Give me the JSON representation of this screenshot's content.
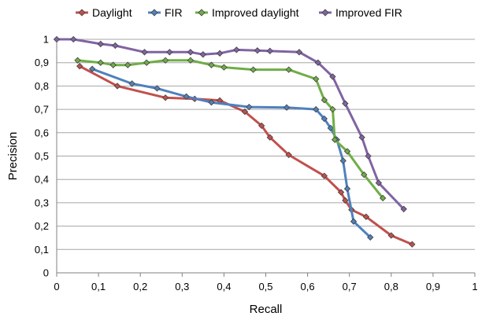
{
  "chart_data": {
    "type": "line",
    "title": "",
    "xlabel": "Recall",
    "ylabel": "Precision",
    "xlim": [
      0,
      1
    ],
    "ylim": [
      0,
      1
    ],
    "x_ticks": [
      "0",
      "0,1",
      "0,2",
      "0,3",
      "0,4",
      "0,5",
      "0,6",
      "0,7",
      "0,8",
      "0,9",
      "1"
    ],
    "y_ticks": [
      "0",
      "0,1",
      "0,2",
      "0,3",
      "0,4",
      "0,5",
      "0,6",
      "0,7",
      "0,8",
      "0,9",
      "1"
    ],
    "grid": "horizontal",
    "legend_position": "top",
    "marker": "diamond",
    "series": [
      {
        "name": "Daylight",
        "color": "#c0504d",
        "points": [
          [
            0.055,
            0.885
          ],
          [
            0.145,
            0.8
          ],
          [
            0.26,
            0.75
          ],
          [
            0.33,
            0.745
          ],
          [
            0.39,
            0.738
          ],
          [
            0.45,
            0.69
          ],
          [
            0.49,
            0.63
          ],
          [
            0.51,
            0.58
          ],
          [
            0.555,
            0.505
          ],
          [
            0.64,
            0.415
          ],
          [
            0.68,
            0.345
          ],
          [
            0.69,
            0.31
          ],
          [
            0.705,
            0.27
          ],
          [
            0.74,
            0.24
          ],
          [
            0.8,
            0.16
          ],
          [
            0.85,
            0.122
          ]
        ]
      },
      {
        "name": "FIR",
        "color": "#4f81bd",
        "points": [
          [
            0.085,
            0.873
          ],
          [
            0.18,
            0.81
          ],
          [
            0.24,
            0.79
          ],
          [
            0.31,
            0.755
          ],
          [
            0.37,
            0.73
          ],
          [
            0.46,
            0.71
          ],
          [
            0.55,
            0.708
          ],
          [
            0.62,
            0.7
          ],
          [
            0.64,
            0.66
          ],
          [
            0.655,
            0.62
          ],
          [
            0.67,
            0.57
          ],
          [
            0.685,
            0.48
          ],
          [
            0.695,
            0.36
          ],
          [
            0.71,
            0.22
          ],
          [
            0.75,
            0.152
          ]
        ]
      },
      {
        "name": "Improved daylight",
        "color": "#70ad47",
        "points": [
          [
            0.05,
            0.91
          ],
          [
            0.105,
            0.9
          ],
          [
            0.135,
            0.89
          ],
          [
            0.17,
            0.89
          ],
          [
            0.215,
            0.9
          ],
          [
            0.26,
            0.91
          ],
          [
            0.32,
            0.91
          ],
          [
            0.37,
            0.89
          ],
          [
            0.4,
            0.88
          ],
          [
            0.47,
            0.87
          ],
          [
            0.555,
            0.87
          ],
          [
            0.62,
            0.83
          ],
          [
            0.64,
            0.74
          ],
          [
            0.66,
            0.7
          ],
          [
            0.665,
            0.57
          ],
          [
            0.695,
            0.52
          ],
          [
            0.735,
            0.42
          ],
          [
            0.78,
            0.32
          ]
        ]
      },
      {
        "name": "Improved FIR",
        "color": "#8064a2",
        "points": [
          [
            0.0,
            1.0
          ],
          [
            0.04,
            1.0
          ],
          [
            0.105,
            0.98
          ],
          [
            0.14,
            0.973
          ],
          [
            0.21,
            0.945
          ],
          [
            0.27,
            0.945
          ],
          [
            0.32,
            0.945
          ],
          [
            0.35,
            0.935
          ],
          [
            0.39,
            0.94
          ],
          [
            0.43,
            0.955
          ],
          [
            0.48,
            0.952
          ],
          [
            0.51,
            0.95
          ],
          [
            0.58,
            0.945
          ],
          [
            0.625,
            0.9
          ],
          [
            0.66,
            0.84
          ],
          [
            0.69,
            0.725
          ],
          [
            0.73,
            0.58
          ],
          [
            0.745,
            0.5
          ],
          [
            0.77,
            0.385
          ],
          [
            0.83,
            0.273
          ]
        ]
      }
    ]
  }
}
